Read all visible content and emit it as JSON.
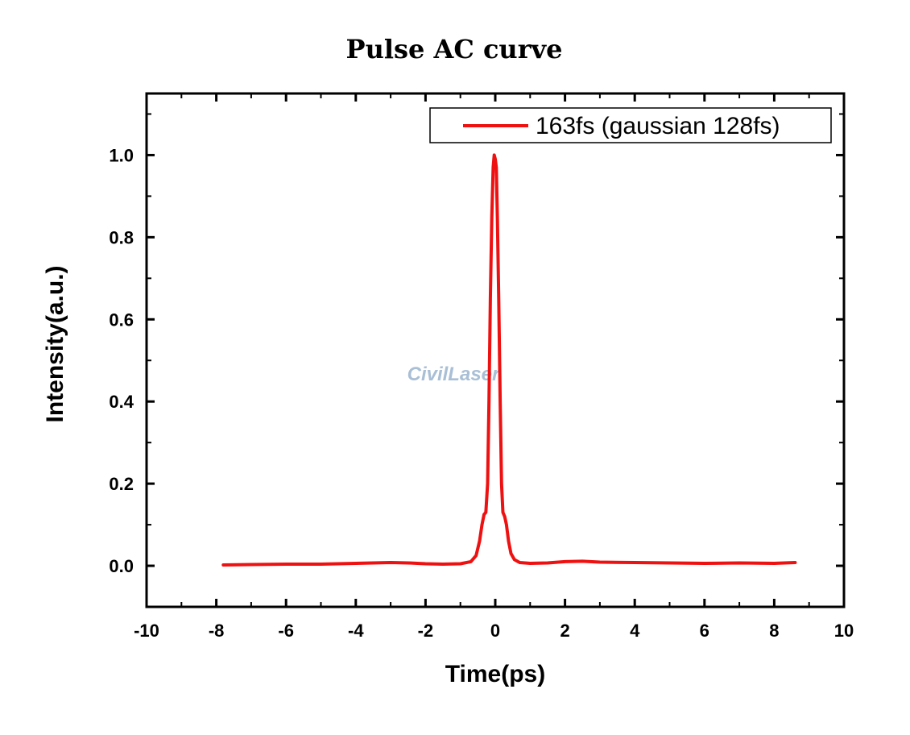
{
  "chart_data": {
    "type": "line",
    "title": "Pulse AC curve",
    "xlabel": "Time(ps)",
    "ylabel": "Intensity(a.u.)",
    "xlim": [
      -10,
      10
    ],
    "ylim": [
      -0.1,
      1.15
    ],
    "x_ticks": [
      -10,
      -8,
      -6,
      -4,
      -2,
      0,
      2,
      4,
      6,
      8,
      10
    ],
    "x_tick_labels": [
      "-10",
      "-8",
      "-6",
      "-4",
      "-2",
      "0",
      "2",
      "4",
      "6",
      "8",
      "10"
    ],
    "y_ticks": [
      0.0,
      0.2,
      0.4,
      0.6,
      0.8,
      1.0
    ],
    "y_tick_labels": [
      "0.0",
      "0.2",
      "0.4",
      "0.6",
      "0.8",
      "1.0"
    ],
    "grid": false,
    "legend_position": "top-right",
    "series": [
      {
        "name": "163fs (gaussian 128fs)",
        "color": "#ee1111",
        "x": [
          -7.8,
          -7.0,
          -6.0,
          -5.0,
          -4.0,
          -3.0,
          -2.5,
          -2.0,
          -1.5,
          -1.0,
          -0.7,
          -0.55,
          -0.45,
          -0.38,
          -0.32,
          -0.27,
          -0.22,
          -0.18,
          -0.14,
          -0.1,
          -0.06,
          -0.03,
          0.0,
          0.03,
          0.06,
          0.1,
          0.14,
          0.18,
          0.22,
          0.27,
          0.32,
          0.38,
          0.45,
          0.55,
          0.7,
          1.0,
          1.5,
          2.0,
          2.5,
          3.0,
          4.0,
          5.0,
          6.0,
          7.0,
          8.0,
          8.6
        ],
        "y": [
          0.002,
          0.003,
          0.004,
          0.004,
          0.006,
          0.008,
          0.007,
          0.005,
          0.004,
          0.005,
          0.01,
          0.025,
          0.06,
          0.1,
          0.125,
          0.13,
          0.2,
          0.4,
          0.65,
          0.85,
          0.97,
          1.0,
          0.99,
          0.97,
          0.85,
          0.65,
          0.4,
          0.2,
          0.13,
          0.12,
          0.1,
          0.06,
          0.03,
          0.015,
          0.008,
          0.006,
          0.007,
          0.01,
          0.011,
          0.009,
          0.008,
          0.007,
          0.006,
          0.007,
          0.006,
          0.008
        ]
      }
    ],
    "watermark": "CivilLaser"
  }
}
